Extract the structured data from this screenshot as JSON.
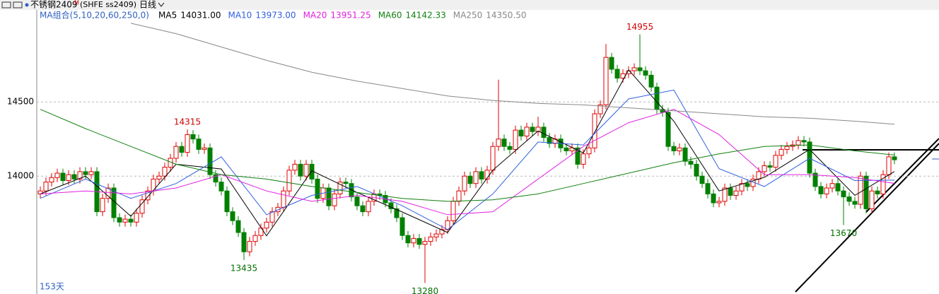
{
  "header": {
    "title": "不锈钢2409",
    "superscript": "M",
    "code": "(SHFE ss2409)",
    "period": "日线"
  },
  "chart_data": {
    "type": "candlestick",
    "legend_title": "MA组合(5,10,20,60,250,0)",
    "footer": "153天",
    "up_color": "#e00000",
    "down_color": "#008000",
    "ylim": [
      13220,
      15120
    ],
    "yticks": [
      14000,
      14500
    ],
    "grid": true,
    "candles": [
      [
        13880,
        13930,
        13850,
        13900
      ],
      [
        13900,
        13990,
        13870,
        13960
      ],
      [
        13960,
        14020,
        13930,
        13990
      ],
      [
        13990,
        14050,
        13960,
        14020
      ],
      [
        14020,
        14050,
        13940,
        13970
      ],
      [
        13970,
        14040,
        13940,
        14010
      ],
      [
        14010,
        14040,
        13950,
        13980
      ],
      [
        13980,
        14060,
        13950,
        14030
      ],
      [
        14030,
        14060,
        13980,
        14010
      ],
      [
        14010,
        14060,
        13980,
        14030
      ],
      [
        14030,
        14060,
        13730,
        13760
      ],
      [
        13760,
        13880,
        13730,
        13850
      ],
      [
        13850,
        13950,
        13820,
        13920
      ],
      [
        13920,
        13950,
        13690,
        13720
      ],
      [
        13720,
        13750,
        13660,
        13690
      ],
      [
        13690,
        13740,
        13660,
        13710
      ],
      [
        13710,
        13740,
        13660,
        13690
      ],
      [
        13690,
        13780,
        13660,
        13750
      ],
      [
        13750,
        13870,
        13720,
        13840
      ],
      [
        13840,
        13930,
        13810,
        13900
      ],
      [
        13900,
        14010,
        13870,
        13980
      ],
      [
        13980,
        14030,
        13950,
        14000
      ],
      [
        14000,
        14090,
        13970,
        14060
      ],
      [
        14060,
        14150,
        14030,
        14120
      ],
      [
        14120,
        14230,
        14090,
        14200
      ],
      [
        14200,
        14230,
        14130,
        14160
      ],
      [
        14160,
        14315,
        14130,
        14280
      ],
      [
        14280,
        14310,
        14220,
        14250
      ],
      [
        14250,
        14280,
        14150,
        14180
      ],
      [
        14180,
        14220,
        14150,
        14190
      ],
      [
        14190,
        14220,
        13980,
        14010
      ],
      [
        14010,
        14040,
        13930,
        13960
      ],
      [
        13960,
        13990,
        13870,
        13900
      ],
      [
        13900,
        13930,
        13730,
        13760
      ],
      [
        13760,
        13790,
        13670,
        13700
      ],
      [
        13700,
        13730,
        13590,
        13620
      ],
      [
        13620,
        13650,
        13435,
        13490
      ],
      [
        13490,
        13590,
        13460,
        13560
      ],
      [
        13560,
        13630,
        13530,
        13600
      ],
      [
        13600,
        13680,
        13570,
        13650
      ],
      [
        13650,
        13720,
        13620,
        13690
      ],
      [
        13690,
        13790,
        13660,
        13760
      ],
      [
        13760,
        13820,
        13730,
        13790
      ],
      [
        13790,
        13930,
        13760,
        13900
      ],
      [
        13900,
        14070,
        13870,
        14040
      ],
      [
        14040,
        14110,
        14010,
        14080
      ],
      [
        14080,
        14110,
        13970,
        14000
      ],
      [
        14000,
        14110,
        13970,
        14080
      ],
      [
        14080,
        14110,
        13950,
        13980
      ],
      [
        13980,
        14010,
        13820,
        13850
      ],
      [
        13850,
        13950,
        13820,
        13920
      ],
      [
        13920,
        13950,
        13770,
        13800
      ],
      [
        13800,
        13910,
        13770,
        13880
      ],
      [
        13880,
        13990,
        13850,
        13960
      ],
      [
        13960,
        13990,
        13920,
        13950
      ],
      [
        13950,
        13980,
        13830,
        13860
      ],
      [
        13860,
        13890,
        13770,
        13800
      ],
      [
        13800,
        13830,
        13730,
        13760
      ],
      [
        13760,
        13860,
        13730,
        13830
      ],
      [
        13830,
        13910,
        13800,
        13880
      ],
      [
        13880,
        13910,
        13840,
        13870
      ],
      [
        13870,
        13900,
        13790,
        13820
      ],
      [
        13820,
        13850,
        13750,
        13780
      ],
      [
        13780,
        13810,
        13690,
        13720
      ],
      [
        13720,
        13750,
        13570,
        13600
      ],
      [
        13600,
        13630,
        13520,
        13550
      ],
      [
        13550,
        13610,
        13520,
        13580
      ],
      [
        13580,
        13610,
        13510,
        13540
      ],
      [
        13540,
        13590,
        13280,
        13560
      ],
      [
        13560,
        13620,
        13530,
        13590
      ],
      [
        13590,
        13640,
        13560,
        13610
      ],
      [
        13610,
        13670,
        13580,
        13640
      ],
      [
        13640,
        13730,
        13610,
        13700
      ],
      [
        13700,
        13860,
        13670,
        13830
      ],
      [
        13830,
        13930,
        13800,
        13900
      ],
      [
        13900,
        14030,
        13870,
        14000
      ],
      [
        14000,
        14030,
        13920,
        13950
      ],
      [
        13950,
        14060,
        13920,
        14030
      ],
      [
        14030,
        14060,
        13950,
        13980
      ],
      [
        13980,
        14070,
        13950,
        14040
      ],
      [
        14040,
        14230,
        14010,
        14200
      ],
      [
        14200,
        14650,
        14170,
        14250
      ],
      [
        14250,
        14280,
        14170,
        14200
      ],
      [
        14200,
        14230,
        14150,
        14180
      ],
      [
        14180,
        14340,
        14150,
        14310
      ],
      [
        14310,
        14340,
        14240,
        14270
      ],
      [
        14270,
        14360,
        14240,
        14330
      ],
      [
        14330,
        14360,
        14270,
        14300
      ],
      [
        14300,
        14400,
        14270,
        14330
      ],
      [
        14330,
        14360,
        14230,
        14260
      ],
      [
        14260,
        14290,
        14190,
        14220
      ],
      [
        14220,
        14280,
        14190,
        14250
      ],
      [
        14250,
        14280,
        14160,
        14190
      ],
      [
        14190,
        14220,
        14140,
        14170
      ],
      [
        14170,
        14220,
        14140,
        14190
      ],
      [
        14190,
        14220,
        14050,
        14080
      ],
      [
        14080,
        14180,
        14050,
        14150
      ],
      [
        14150,
        14220,
        14120,
        14190
      ],
      [
        14190,
        14450,
        14160,
        14420
      ],
      [
        14420,
        14510,
        14390,
        14480
      ],
      [
        14480,
        14890,
        14450,
        14800
      ],
      [
        14800,
        14830,
        14690,
        14720
      ],
      [
        14720,
        14750,
        14630,
        14660
      ],
      [
        14660,
        14720,
        14630,
        14690
      ],
      [
        14690,
        14740,
        14660,
        14710
      ],
      [
        14710,
        14760,
        14680,
        14730
      ],
      [
        14730,
        14955,
        14680,
        14710
      ],
      [
        14710,
        14740,
        14650,
        14680
      ],
      [
        14680,
        14710,
        14570,
        14600
      ],
      [
        14600,
        14630,
        14420,
        14450
      ],
      [
        14450,
        14480,
        14400,
        14430
      ],
      [
        14430,
        14460,
        14170,
        14200
      ],
      [
        14200,
        14230,
        14140,
        14170
      ],
      [
        14170,
        14220,
        14140,
        14190
      ],
      [
        14190,
        14220,
        14070,
        14100
      ],
      [
        14100,
        14130,
        14050,
        14080
      ],
      [
        14080,
        14110,
        13970,
        14000
      ],
      [
        14000,
        14030,
        13920,
        13950
      ],
      [
        13950,
        13980,
        13850,
        13880
      ],
      [
        13880,
        13910,
        13790,
        13820
      ],
      [
        13820,
        13860,
        13790,
        13830
      ],
      [
        13830,
        13950,
        13800,
        13920
      ],
      [
        13920,
        13950,
        13840,
        13870
      ],
      [
        13870,
        13930,
        13840,
        13900
      ],
      [
        13900,
        13980,
        13870,
        13950
      ],
      [
        13950,
        13980,
        13900,
        13930
      ],
      [
        13930,
        14010,
        13900,
        13980
      ],
      [
        13980,
        14060,
        13950,
        14030
      ],
      [
        14030,
        14100,
        14000,
        14070
      ],
      [
        14070,
        14100,
        14030,
        14060
      ],
      [
        14060,
        14170,
        14030,
        14140
      ],
      [
        14140,
        14210,
        14110,
        14180
      ],
      [
        14180,
        14230,
        14150,
        14200
      ],
      [
        14200,
        14240,
        14170,
        14210
      ],
      [
        14210,
        14270,
        14180,
        14240
      ],
      [
        14240,
        14270,
        14200,
        14230
      ],
      [
        14230,
        14260,
        13990,
        14020
      ],
      [
        14020,
        14050,
        13900,
        13930
      ],
      [
        13930,
        13960,
        13850,
        13880
      ],
      [
        13880,
        13950,
        13850,
        13920
      ],
      [
        13920,
        13980,
        13890,
        13950
      ],
      [
        13950,
        13980,
        13870,
        13900
      ],
      [
        13900,
        13930,
        13670,
        13860
      ],
      [
        13860,
        13890,
        13800,
        13830
      ],
      [
        13830,
        13860,
        13780,
        13810
      ],
      [
        13810,
        14030,
        13780,
        14000
      ],
      [
        14000,
        14030,
        13750,
        13780
      ],
      [
        13780,
        13930,
        13750,
        13900
      ],
      [
        13900,
        13930,
        13850,
        13880
      ],
      [
        13880,
        14040,
        13850,
        14010
      ],
      [
        14010,
        14160,
        13980,
        14130
      ],
      [
        14130,
        14160,
        14080,
        14110
      ]
    ],
    "series": [
      {
        "name": "MA5",
        "legend_value": "14031.00",
        "color": "#000000",
        "x": [
          0,
          8,
          16,
          24,
          32,
          40,
          48,
          56,
          64,
          72,
          80,
          88,
          96,
          104,
          112,
          120,
          128,
          136,
          144,
          151
        ],
        "values": [
          13880,
          14000,
          13730,
          14080,
          14048,
          13598,
          14036,
          13890,
          13758,
          13620,
          14040,
          14304,
          14156,
          14716,
          14370,
          13900,
          13992,
          14180,
          13870,
          14031
        ]
      },
      {
        "name": "MA10",
        "legend_value": "13973.00",
        "color": "#3060e0",
        "x": [
          0,
          8,
          16,
          24,
          32,
          40,
          48,
          56,
          64,
          72,
          80,
          88,
          96,
          104,
          112,
          120,
          128,
          136,
          144,
          151
        ],
        "values": [
          13850,
          13980,
          13850,
          13950,
          14130,
          13740,
          13870,
          13930,
          13800,
          13640,
          13880,
          14230,
          14210,
          14520,
          14580,
          14050,
          13930,
          14120,
          13970,
          13973
        ]
      },
      {
        "name": "MA20",
        "legend_value": "13951.25",
        "color": "#e020e0",
        "x": [
          0,
          8,
          16,
          24,
          32,
          40,
          48,
          56,
          64,
          72,
          80,
          88,
          96,
          104,
          112,
          120,
          128,
          136,
          144,
          151
        ],
        "values": [
          13880,
          13900,
          13880,
          13920,
          14010,
          13900,
          13830,
          13870,
          13830,
          13740,
          13760,
          13980,
          14200,
          14360,
          14450,
          14280,
          14010,
          14010,
          13990,
          13951
        ]
      },
      {
        "name": "MA60",
        "legend_value": "14142.33",
        "color": "#108010",
        "x": [
          0,
          8,
          16,
          24,
          32,
          40,
          48,
          56,
          64,
          72,
          80,
          88,
          96,
          104,
          112,
          120,
          128,
          136,
          144,
          151
        ],
        "values": [
          14450,
          14320,
          14200,
          14080,
          14010,
          13980,
          13930,
          13890,
          13850,
          13830,
          13840,
          13880,
          13950,
          14020,
          14090,
          14150,
          14200,
          14210,
          14170,
          14142
        ]
      },
      {
        "name": "MA250",
        "legend_value": "14350.50",
        "color": "#888888",
        "x": [
          0,
          8,
          16,
          24,
          32,
          40,
          48,
          56,
          64,
          72,
          80,
          88,
          96,
          104,
          112,
          120,
          128,
          136,
          144,
          151
        ],
        "values": [
          null,
          null,
          15030,
          14960,
          14870,
          14780,
          14700,
          14640,
          14590,
          14540,
          14510,
          14490,
          14480,
          14460,
          14440,
          14420,
          14400,
          14390,
          14370,
          14350
        ]
      }
    ],
    "annotations": [
      {
        "label": "14315",
        "x": 26,
        "value": 14315,
        "color": "#d00000"
      },
      {
        "label": "13435",
        "x": 36,
        "value": 13435,
        "color": "#007000"
      },
      {
        "label": "13280",
        "x": 68,
        "value": 13280,
        "color": "#007000"
      },
      {
        "label": "14955",
        "x": 106,
        "value": 14955,
        "color": "#d00000"
      },
      {
        "label": "13670",
        "x": 142,
        "value": 13670,
        "color": "#007000"
      }
    ]
  }
}
